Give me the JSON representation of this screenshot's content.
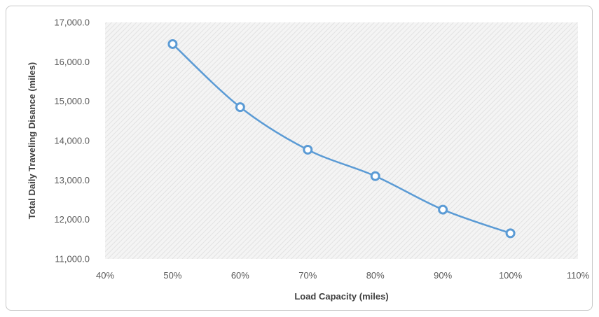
{
  "chart_data": {
    "type": "line",
    "title": "",
    "xlabel": "Load Capacity (miles)",
    "ylabel": "Total Daily Traveling Disance (miles)",
    "x_ticks": [
      "40%",
      "50%",
      "60%",
      "70%",
      "80%",
      "90%",
      "100%",
      "110%"
    ],
    "y_ticks": [
      "11,000.0",
      "12,000.0",
      "13,000.0",
      "14,000.0",
      "15,000.0",
      "16,000.0",
      "17,000.0"
    ],
    "xlim": [
      40,
      110
    ],
    "ylim": [
      11000,
      17000
    ],
    "series": [
      {
        "x": [
          50,
          60,
          70,
          80,
          90,
          100
        ],
        "values": [
          16450,
          14850,
          13770,
          13100,
          12250,
          11650
        ]
      }
    ],
    "grid": false,
    "legend": "none",
    "colors": {
      "line": "#5b9bd5",
      "marker_fill": "#ffffff",
      "plot_bg": "#f2f2f2",
      "hatch": "#e2e2e2"
    }
  }
}
